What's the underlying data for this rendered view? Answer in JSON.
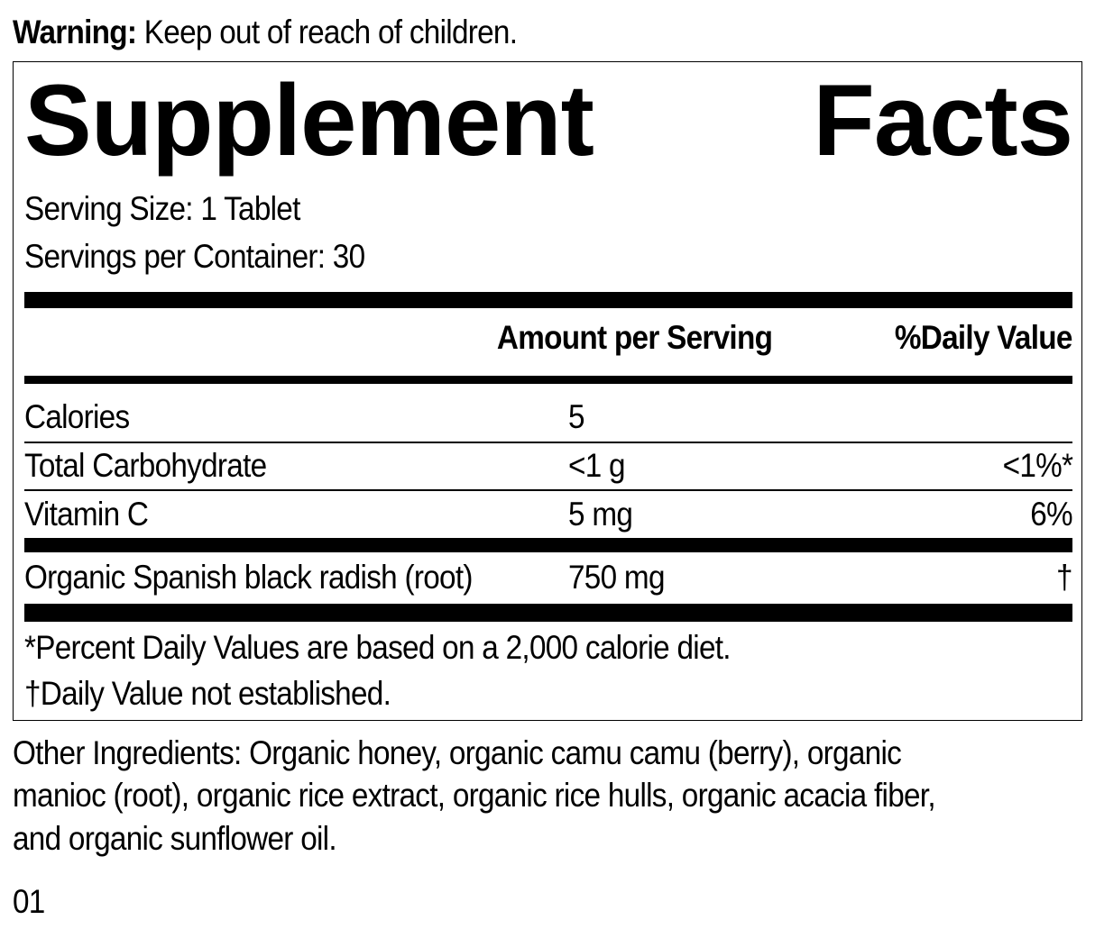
{
  "warning": {
    "label": "Warning:",
    "text": " Keep out of reach of children."
  },
  "panel": {
    "title_left": "Supplement",
    "title_right": "Facts",
    "serving_size": "Serving Size: 1 Tablet",
    "servings_per_container": "Servings per Container: 30",
    "header": {
      "amount": "Amount per Serving",
      "dv": "%Daily Value"
    },
    "rows": [
      {
        "name": "Calories",
        "amount": "5",
        "dv": ""
      },
      {
        "name": "Total Carbohydrate",
        "amount": "<1 g",
        "dv": "<1%*"
      },
      {
        "name": "Vitamin C",
        "amount": "5 mg",
        "dv": "6%"
      },
      {
        "name": "Organic Spanish black radish (root)",
        "amount": "750 mg",
        "dv": "†"
      }
    ],
    "footnotes": [
      "*Percent Daily Values are based on a 2,000 calorie diet.",
      "†Daily Value not established."
    ]
  },
  "other_ingredients": [
    "Other Ingredients: Organic honey, organic camu camu (berry), organic",
    "manioc (root), organic rice extract, organic rice hulls, organic acacia fiber,",
    "and organic sunflower oil."
  ],
  "code": "01"
}
